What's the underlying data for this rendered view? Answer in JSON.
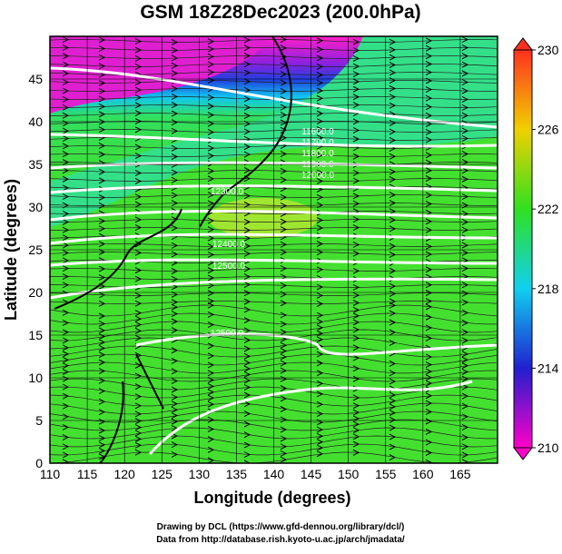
{
  "title": "GSM 18Z28Dec2023 (200.0hPa)",
  "x_axis": {
    "label": "Longitude (degrees)",
    "lim": [
      110,
      170
    ],
    "ticks": [
      110,
      115,
      120,
      125,
      130,
      135,
      140,
      145,
      150,
      155,
      160,
      165
    ]
  },
  "y_axis": {
    "label": "Latitude  (degrees)",
    "lim": [
      0,
      50
    ],
    "ticks": [
      0,
      5,
      10,
      15,
      20,
      25,
      30,
      35,
      40,
      45
    ]
  },
  "colorbar": {
    "lim": [
      210,
      230
    ],
    "ticks": [
      210,
      214,
      218,
      222,
      226,
      230
    ]
  },
  "contour_labels": [
    "11600.0",
    "11700.0",
    "11800.0",
    "11900.0",
    "12000.0",
    "12300.0",
    "12400.0",
    "12500.0",
    "12500.0"
  ],
  "credits": [
    "Drawing by DCL (https://www.gfd-dennou.org/library/dcl/)",
    "Data from http://database.rish.kyoto-u.ac.jp/arch/jmadata/"
  ]
}
